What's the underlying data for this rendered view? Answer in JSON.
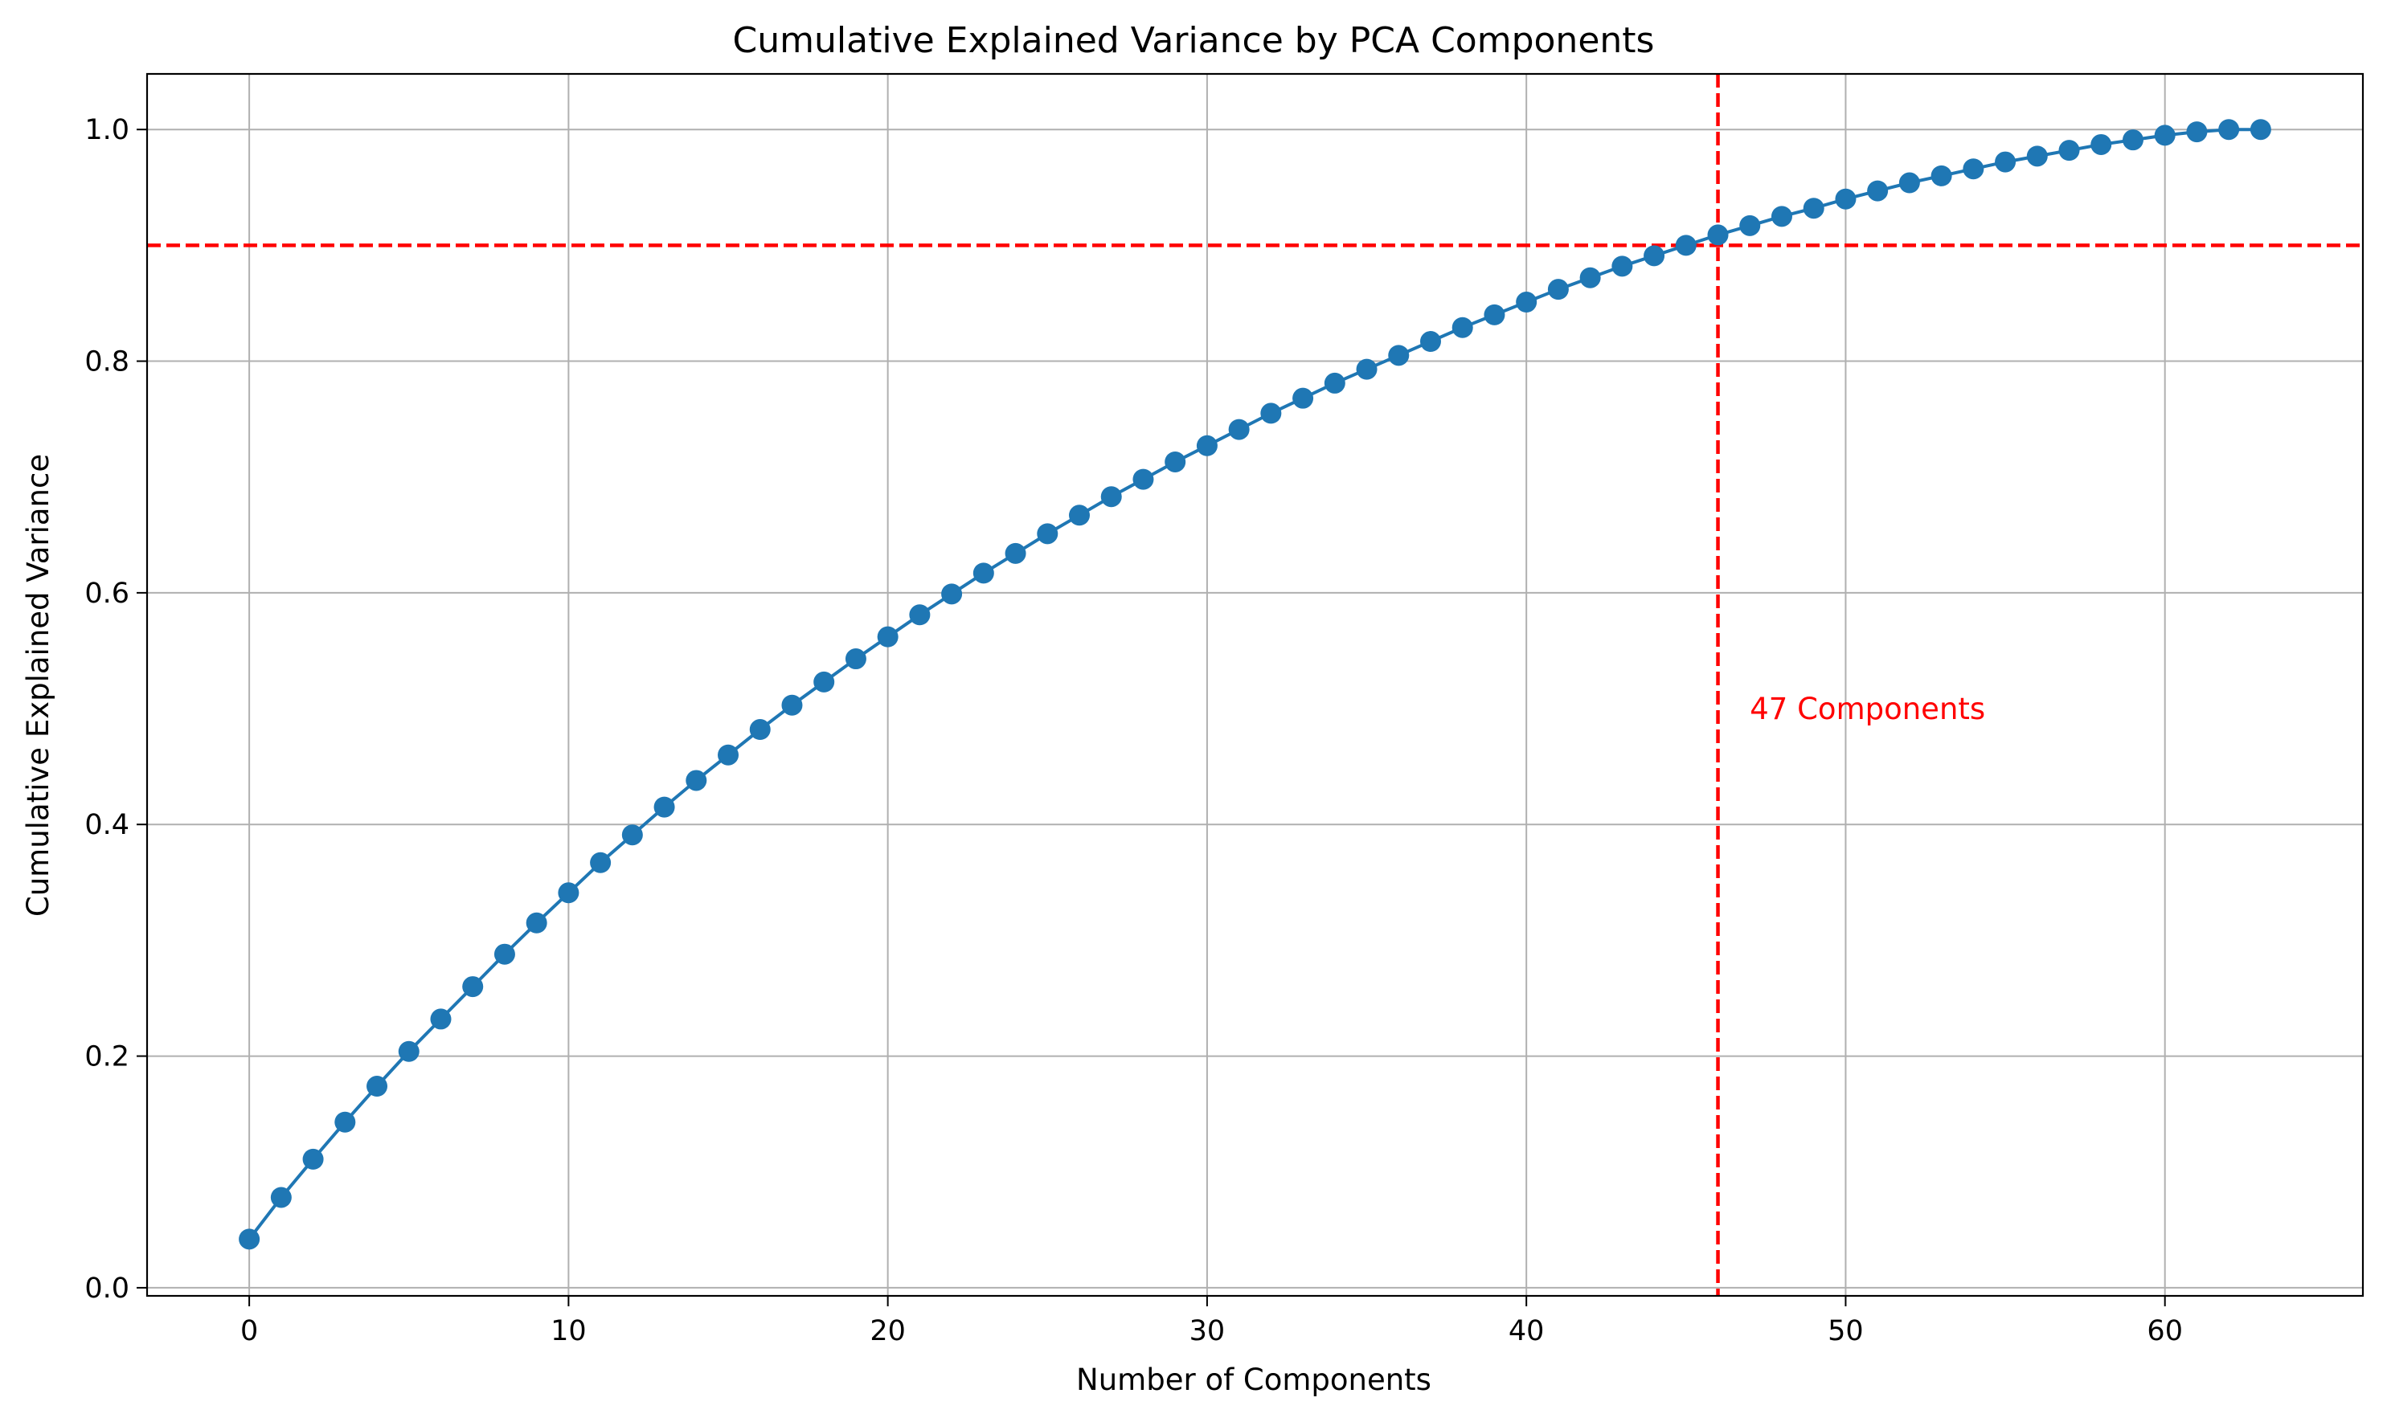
{
  "chart_data": {
    "type": "line",
    "title": "Cumulative Explained Variance by PCA Components",
    "xlabel": "Number of Components",
    "ylabel": "Cumulative Explained Variance",
    "xlim": [
      -3.2,
      66.2
    ],
    "ylim": [
      -0.007,
      1.048
    ],
    "xticks": [
      0,
      10,
      20,
      30,
      40,
      50,
      60
    ],
    "xtick_labels": [
      "0",
      "10",
      "20",
      "30",
      "40",
      "50",
      "60"
    ],
    "yticks": [
      0.0,
      0.2,
      0.4,
      0.6,
      0.8,
      1.0
    ],
    "ytick_labels": [
      "0.0",
      "0.2",
      "0.4",
      "0.6",
      "0.8",
      "1.0"
    ],
    "grid": true,
    "series": [
      {
        "color": "#1f77b4",
        "marker": "circle",
        "x": [
          0,
          1,
          2,
          3,
          4,
          5,
          6,
          7,
          8,
          9,
          10,
          11,
          12,
          13,
          14,
          15,
          16,
          17,
          18,
          19,
          20,
          21,
          22,
          23,
          24,
          25,
          26,
          27,
          28,
          29,
          30,
          31,
          32,
          33,
          34,
          35,
          36,
          37,
          38,
          39,
          40,
          41,
          42,
          43,
          44,
          45,
          46,
          47,
          48,
          49,
          50,
          51,
          52,
          53,
          54,
          55,
          56,
          57,
          58,
          59,
          60,
          61,
          62,
          63
        ],
        "y": [
          0.042,
          0.078,
          0.111,
          0.143,
          0.174,
          0.204,
          0.232,
          0.26,
          0.288,
          0.315,
          0.341,
          0.367,
          0.391,
          0.415,
          0.438,
          0.46,
          0.482,
          0.503,
          0.523,
          0.543,
          0.562,
          0.581,
          0.599,
          0.617,
          0.634,
          0.651,
          0.667,
          0.683,
          0.698,
          0.713,
          0.727,
          0.741,
          0.755,
          0.768,
          0.781,
          0.793,
          0.805,
          0.817,
          0.829,
          0.84,
          0.851,
          0.862,
          0.872,
          0.882,
          0.891,
          0.9,
          0.909,
          0.917,
          0.925,
          0.932,
          0.94,
          0.947,
          0.954,
          0.96,
          0.966,
          0.972,
          0.977,
          0.982,
          0.987,
          0.991,
          0.995,
          0.998,
          1.0,
          1.0
        ]
      }
    ],
    "reference_lines": [
      {
        "orientation": "horizontal",
        "value": 0.9,
        "style": "dashed",
        "color": "#ff0000"
      },
      {
        "orientation": "vertical",
        "value": 46,
        "style": "dashed",
        "color": "#ff0000"
      }
    ],
    "annotations": [
      {
        "text": "47 Components",
        "x": 47,
        "y": 0.5,
        "color": "#ff0000"
      }
    ]
  }
}
